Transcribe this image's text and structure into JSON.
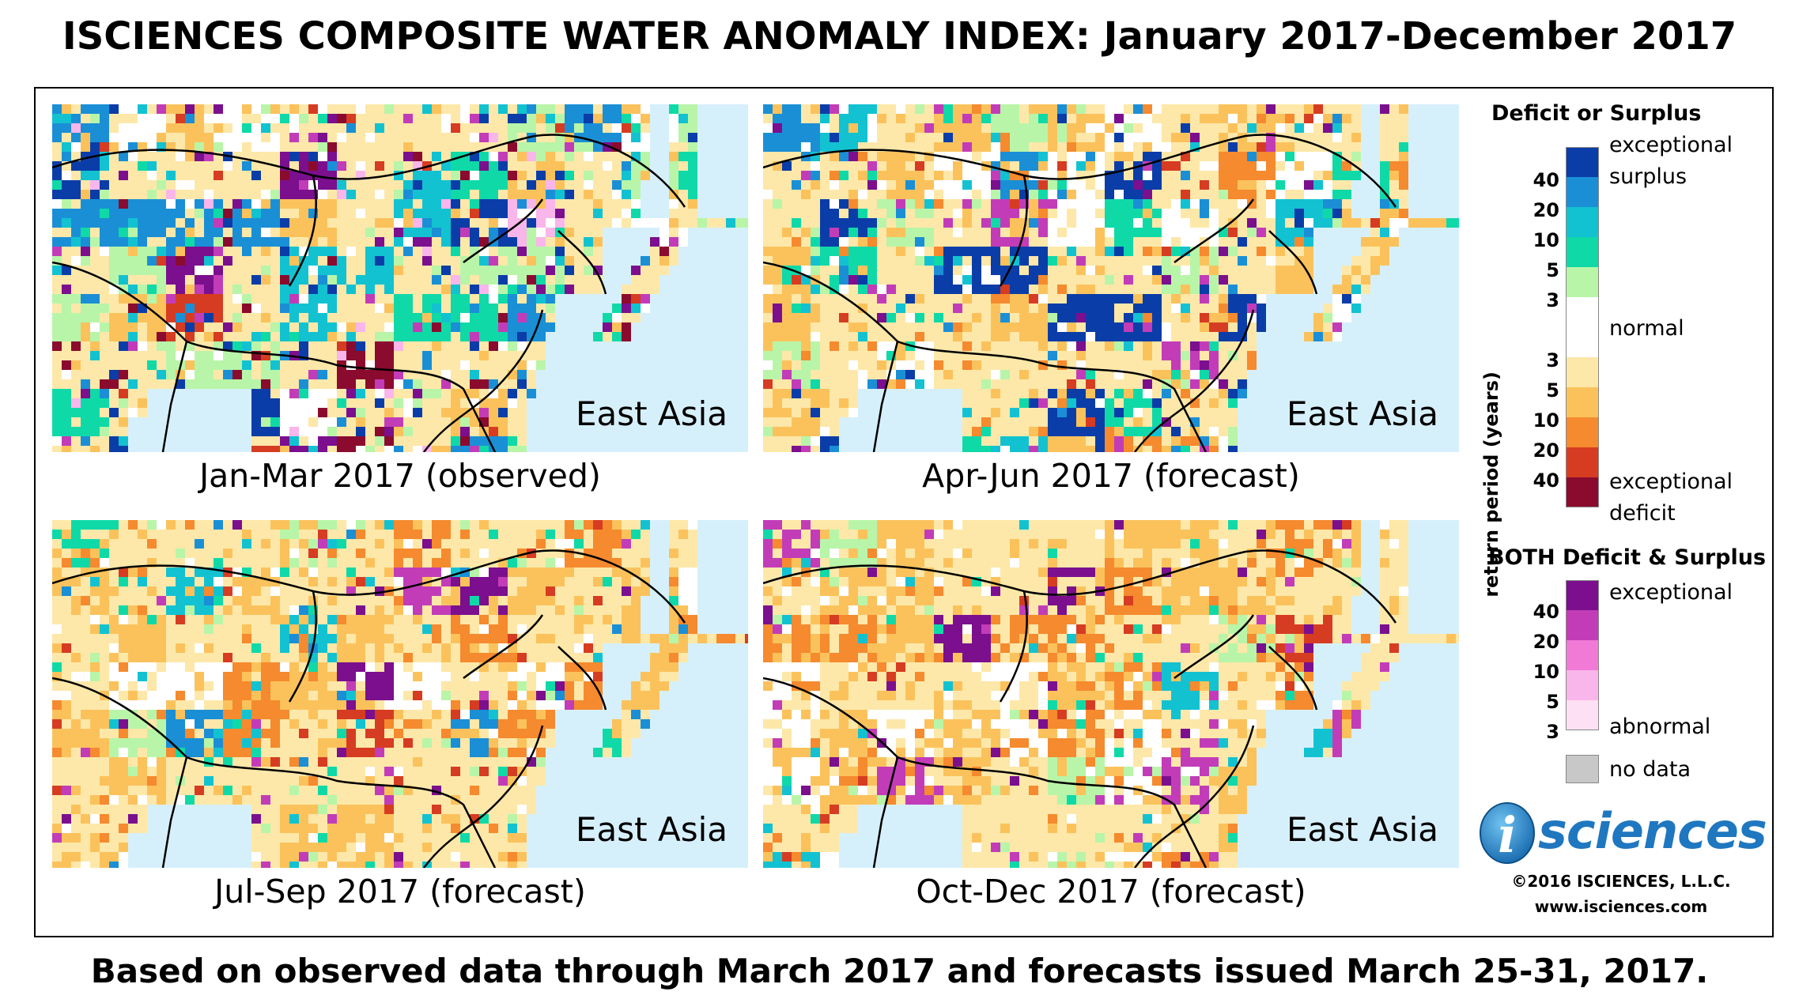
{
  "title": "ISCIENCES COMPOSITE WATER ANOMALY INDEX: January 2017-December 2017",
  "panels": [
    {
      "region": "East Asia",
      "caption": "Jan-Mar 2017 (observed)",
      "theme": "mixed"
    },
    {
      "region": "East Asia",
      "caption": "Apr-Jun 2017 (forecast)",
      "theme": "mixed2"
    },
    {
      "region": "East Asia",
      "caption": "Jul-Sep 2017 (forecast)",
      "theme": "deficit"
    },
    {
      "region": "East Asia",
      "caption": "Oct-Dec 2017 (forecast)",
      "theme": "deficit2"
    }
  ],
  "legend": {
    "deficit_surplus": {
      "heading": "Deficit or Surplus",
      "axis_label": "return period (years)",
      "labels": {
        "exceptional_surplus_1": "exceptional",
        "exceptional_surplus_2": "surplus",
        "normal": "normal",
        "exceptional_deficit_1": "exceptional",
        "exceptional_deficit_2": "deficit"
      },
      "surplus_ticks": [
        "40",
        "20",
        "10",
        "5",
        "3"
      ],
      "deficit_ticks": [
        "3",
        "5",
        "10",
        "20",
        "40"
      ],
      "colors": [
        "#0b3da8",
        "#1a8fd6",
        "#13c2d1",
        "#10d9a8",
        "#b8f5a8",
        "#ffffff",
        "#fde8a9",
        "#fbc25c",
        "#f58a2e",
        "#d63c22",
        "#8a0b2e"
      ]
    },
    "both": {
      "heading": "BOTH Deficit & Surplus",
      "labels": {
        "exceptional": "exceptional",
        "abnormal": "abnormal"
      },
      "ticks": [
        "40",
        "20",
        "10",
        "5",
        "3"
      ],
      "colors": [
        "#7b0f8e",
        "#c23cb8",
        "#f07ad6",
        "#f9b6ea",
        "#fde0f4"
      ]
    },
    "no_data": {
      "label": "no data",
      "color": "#c8c8c8"
    }
  },
  "logo": {
    "text": "sciences",
    "letter": "i"
  },
  "copyright": "©2016 ISCIENCES, L.L.C.",
  "url": "www.isciences.com",
  "footer": "Based on observed data through March 2017 and forecasts issued March 25-31, 2017."
}
